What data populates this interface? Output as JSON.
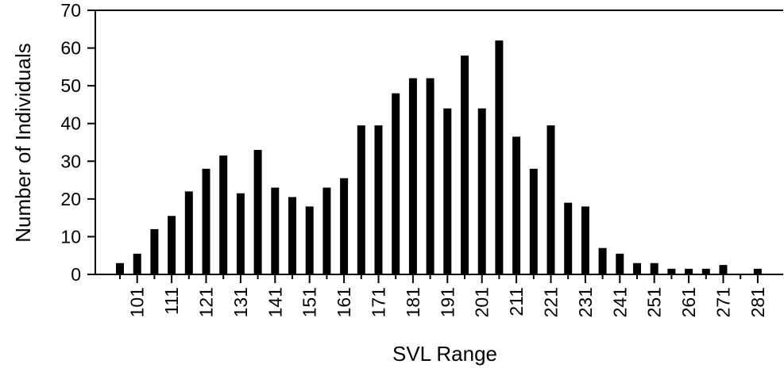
{
  "chart_data": {
    "type": "bar",
    "title": "",
    "xlabel": "SVL Range",
    "ylabel": "Number of Individuals",
    "ylim": [
      0,
      70
    ],
    "y_ticks": [
      "0",
      "10",
      "20",
      "30",
      "40",
      "50",
      "60",
      "70"
    ],
    "grid": false,
    "categories": [
      "96",
      "101",
      "106",
      "111",
      "116",
      "121",
      "126",
      "131",
      "136",
      "141",
      "146",
      "151",
      "156",
      "161",
      "166",
      "171",
      "176",
      "181",
      "186",
      "191",
      "196",
      "201",
      "206",
      "211",
      "216",
      "221",
      "226",
      "231",
      "236",
      "241",
      "246",
      "251",
      "256",
      "261",
      "266",
      "271",
      "276",
      "281"
    ],
    "visible_x_ticks": [
      "101",
      "111",
      "121",
      "131",
      "141",
      "151",
      "161",
      "171",
      "181",
      "191",
      "201",
      "211",
      "221",
      "231",
      "241",
      "251",
      "261",
      "271",
      "281"
    ],
    "values": [
      3,
      5.5,
      12,
      15.5,
      22,
      28,
      31.5,
      21.5,
      33,
      23,
      20.5,
      18,
      23,
      25.5,
      39.5,
      39.5,
      48,
      52,
      52,
      44,
      58,
      44,
      62,
      36.5,
      28,
      39.5,
      19,
      18,
      7,
      5.5,
      3,
      3,
      1.5,
      1.5,
      1.5,
      2.5,
      0,
      1.5
    ],
    "bar_color": "#000000"
  }
}
